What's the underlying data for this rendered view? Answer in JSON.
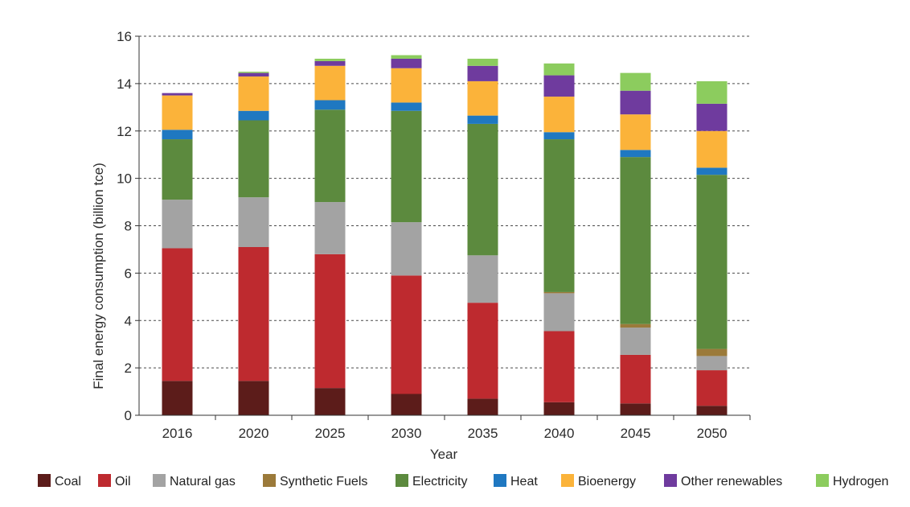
{
  "chart_data": {
    "type": "bar",
    "stacked": true,
    "title": "",
    "xlabel": "Year",
    "ylabel": "Final energy consumption (billion tce)",
    "ylim": [
      0,
      16
    ],
    "yticks": [
      "0",
      "2",
      "4",
      "6",
      "8",
      "10",
      "12",
      "14",
      "16"
    ],
    "grid": "horizontal dashed",
    "legend": "bottom",
    "categories": [
      "2016",
      "2020",
      "2025",
      "2030",
      "2035",
      "2040",
      "2045",
      "2050"
    ],
    "series": [
      {
        "name": "Coal",
        "color": "#5c1c1a",
        "values": [
          1.45,
          1.45,
          1.15,
          0.9,
          0.7,
          0.55,
          0.5,
          0.4
        ]
      },
      {
        "name": "Oil",
        "color": "#be2a2f",
        "values": [
          5.6,
          5.65,
          5.65,
          5.0,
          4.05,
          3.0,
          2.05,
          1.5
        ]
      },
      {
        "name": "Natural gas",
        "color": "#a3a3a3",
        "values": [
          2.05,
          2.1,
          2.2,
          2.25,
          2.0,
          1.6,
          1.15,
          0.6
        ]
      },
      {
        "name": "Synthetic Fuels",
        "color": "#9b7a3a",
        "values": [
          0.0,
          0.0,
          0.0,
          0.0,
          0.0,
          0.05,
          0.15,
          0.3
        ]
      },
      {
        "name": "Electricity",
        "color": "#5c8a3e",
        "values": [
          2.55,
          3.25,
          3.9,
          4.7,
          5.55,
          6.45,
          7.05,
          7.35
        ]
      },
      {
        "name": "Heat",
        "color": "#1f78c1",
        "values": [
          0.4,
          0.4,
          0.4,
          0.35,
          0.35,
          0.3,
          0.3,
          0.3
        ]
      },
      {
        "name": "Bioenergy",
        "color": "#fbb33a",
        "values": [
          1.45,
          1.45,
          1.45,
          1.45,
          1.45,
          1.5,
          1.5,
          1.55
        ]
      },
      {
        "name": "Other renewables",
        "color": "#6f3b9e",
        "values": [
          0.1,
          0.15,
          0.2,
          0.4,
          0.65,
          0.9,
          1.0,
          1.15
        ]
      },
      {
        "name": "Hydrogen",
        "color": "#8ccc5e",
        "values": [
          0.0,
          0.05,
          0.1,
          0.15,
          0.3,
          0.5,
          0.75,
          0.95
        ]
      }
    ]
  }
}
